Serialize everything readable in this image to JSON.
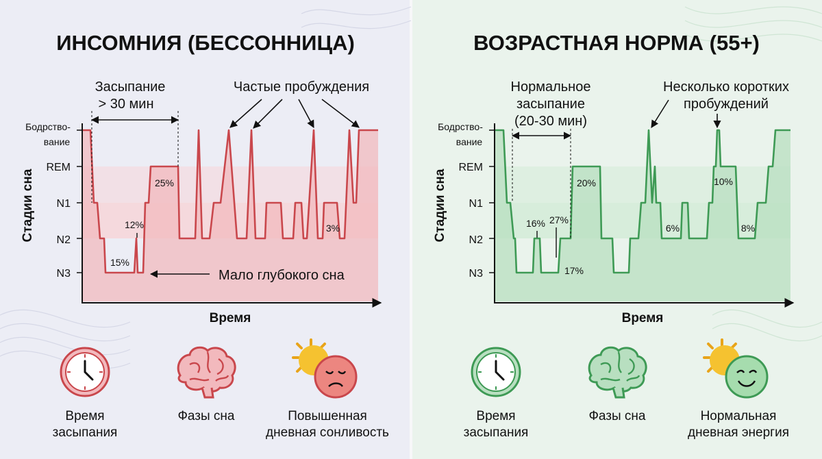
{
  "left": {
    "title": "ИНСОМНИЯ (БЕССОННИЦА)",
    "accent": "#c9474c",
    "fill": "#f2b9bd",
    "band": "#f7d5d8",
    "ann_sleep_onset": [
      "Засыпание",
      "> 30 мин"
    ],
    "ann_awakenings": "Частые пробуждения",
    "ann_deep": "Мало глубокого сна",
    "pct": [
      "25%",
      "12%",
      "15%",
      "3%"
    ],
    "icons": [
      {
        "name": "clock-icon",
        "label": [
          "Время",
          "засыпания"
        ]
      },
      {
        "name": "brain-icon",
        "label": [
          "Фазы сна"
        ]
      },
      {
        "name": "sad-sun-face-icon",
        "label": [
          "Повышенная",
          "дневная сонливость"
        ]
      }
    ]
  },
  "right": {
    "title": "ВОЗРАСТНАЯ НОРМА (55+)",
    "accent": "#3e9a55",
    "fill": "#b8dfc0",
    "band": "#d3ebd8",
    "ann_sleep_onset": [
      "Нормальное",
      "засыпание",
      "(20-30 мин)"
    ],
    "ann_awakenings": [
      "Несколько коротких",
      "пробуждений"
    ],
    "pct": [
      "20%",
      "16%",
      "27%",
      "17%",
      "10%",
      "6%",
      "8%"
    ],
    "icons": [
      {
        "name": "clock-icon",
        "label": [
          "Время",
          "засыпания"
        ]
      },
      {
        "name": "brain-icon",
        "label": [
          "Фазы сна"
        ]
      },
      {
        "name": "happy-sun-face-icon",
        "label": [
          "Нормальная",
          "дневная энергия"
        ]
      }
    ]
  },
  "axis": {
    "y_title": "Стадии сна",
    "x_title": "Время",
    "stages": [
      "Бодрство-\nвание",
      "REM",
      "N1",
      "N2",
      "N3"
    ]
  },
  "chart_data": [
    {
      "type": "line",
      "title": "ИНСОМНИЯ (БЕССОННИЦА)",
      "xlabel": "Время",
      "ylabel": "Стадии сна",
      "y_categories": [
        "Бодрствование",
        "REM",
        "N1",
        "N2",
        "N3"
      ],
      "annotations": [
        "Засыпание > 30 мин",
        "Частые пробуждения",
        "Мало глубокого сна",
        "25%",
        "12%",
        "15%",
        "3%"
      ]
    },
    {
      "type": "line",
      "title": "ВОЗРАСТНАЯ НОРМА (55+)",
      "xlabel": "Время",
      "ylabel": "Стадии сна",
      "y_categories": [
        "Бодрствование",
        "REM",
        "N1",
        "N2",
        "N3"
      ],
      "annotations": [
        "Нормальное засыпание (20-30 мин)",
        "Несколько коротких пробуждений",
        "20%",
        "16%",
        "27%",
        "17%",
        "10%",
        "6%",
        "8%"
      ]
    }
  ]
}
